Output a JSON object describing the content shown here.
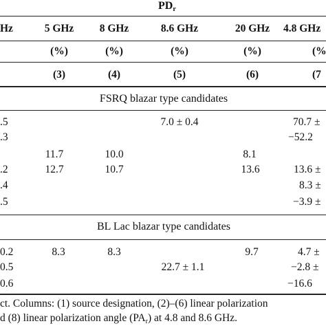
{
  "header": {
    "group_label": "PD",
    "group_label_sub": "r",
    "col_frequencies": [
      "Hz",
      "5 GHz",
      "8 GHz",
      "8.6 GHz",
      "20 GHz",
      "4.8 GHz"
    ],
    "units": [
      "(%)",
      "(%)",
      "(%)",
      "(%)",
      "(%"
    ],
    "col_numbers": [
      "(3)",
      "(4)",
      "(5)",
      "(6)",
      "(7"
    ]
  },
  "sections": [
    {
      "title": "FSRQ blazar type candidates",
      "rows": [
        {
          "c0": ".5",
          "c1": "",
          "c2": "",
          "c3": "7.0 ± 0.4",
          "c4": "",
          "c5": "70.7 ±"
        },
        {
          "c0": ".3",
          "c1": "",
          "c2": "",
          "c3": "",
          "c4": "",
          "c5": "−52.2"
        },
        {
          "c0": "",
          "c1": "11.7",
          "c2": "10.0",
          "c3": "",
          "c4": "8.1",
          "c5": ""
        },
        {
          "c0": ".2",
          "c1": "12.7",
          "c2": "10.7",
          "c3": "",
          "c4": "13.6",
          "c5": "13.6 ±"
        },
        {
          "c0": ".4",
          "c1": "",
          "c2": "",
          "c3": "",
          "c4": "",
          "c5": "8.3 ±"
        },
        {
          "c0": ".5",
          "c1": "",
          "c2": "",
          "c3": "",
          "c4": "",
          "c5": "−3.9 ±"
        }
      ]
    },
    {
      "title": "BL Lac blazar type candidates",
      "rows": [
        {
          "c0": "0.2",
          "c1": "8.3",
          "c2": "8.3",
          "c3": "",
          "c4": "9.7",
          "c5": "4.7 ±"
        },
        {
          "c0": "0.5",
          "c1": "",
          "c2": "",
          "c3": "22.7 ± 1.1",
          "c4": "",
          "c5": "−2.8 ±"
        },
        {
          "c0": "0.6",
          "c1": "",
          "c2": "",
          "c3": "",
          "c4": "",
          "c5": "−16.6"
        }
      ]
    }
  ],
  "caption": {
    "line1": "ct. Columns: (1) source designation, (2)–(6) linear polarization",
    "line2": "d (8) linear polarization angle (PA",
    "line2_sub": "r",
    "line2_end": ") at 4.8 and 8.6 GHz."
  }
}
